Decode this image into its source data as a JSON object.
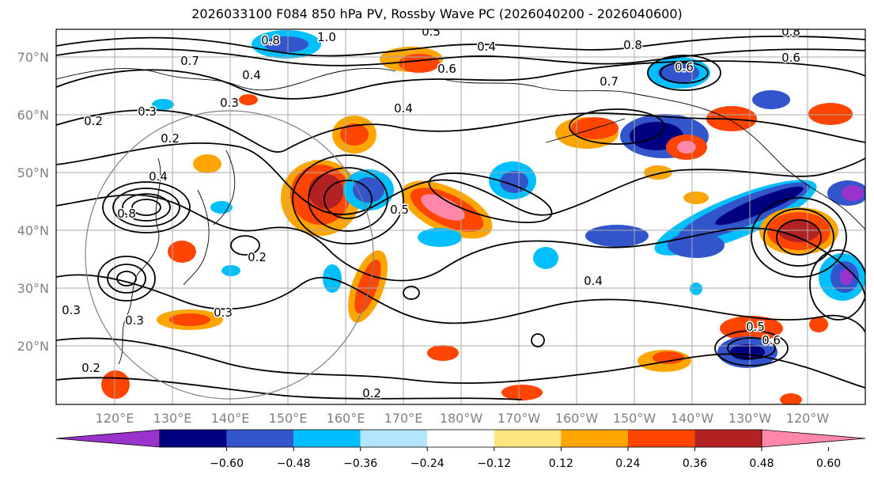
{
  "title": "2026033100 F084 850 hPa PV, Rossby Wave PC (2026040200 - 2026040600)",
  "map": {
    "lat_labels": [
      "70°N",
      "60°N",
      "50°N",
      "40°N",
      "30°N",
      "20°N"
    ],
    "lon_labels": [
      "120°E",
      "130°E",
      "140°E",
      "150°E",
      "160°E",
      "170°E",
      "180°W",
      "170°W",
      "160°W",
      "150°W",
      "140°W",
      "130°W",
      "120°W"
    ],
    "contour_labels": [
      "1.0",
      "0.8",
      "0.7",
      "0.4",
      "0.3",
      "0.2",
      "0.5",
      "0.6",
      "0.8",
      "0.7",
      "0.6",
      "0.6",
      "0.4",
      "0.4",
      "0.5",
      "0.2",
      "0.3",
      "0.3",
      "0.2",
      "0.4",
      "0.2",
      "0.4",
      "0.5",
      "0.6",
      "0.3",
      "0.8",
      "0.8",
      "0.3",
      "0.2"
    ]
  },
  "colorbar": {
    "ticks": [
      "−0.60",
      "−0.48",
      "−0.36",
      "−0.24",
      "−0.12",
      "0.12",
      "0.24",
      "0.36",
      "0.48",
      "0.60"
    ],
    "colors": [
      "#9933cc",
      "#000080",
      "#3355cc",
      "#00bfff",
      "#b3e5fc",
      "#ffffff",
      "#ffe680",
      "#ffa500",
      "#ff4500",
      "#b22222",
      "#ff88aa"
    ]
  },
  "colors": {
    "purple": "#9933cc",
    "navy": "#000080",
    "blue": "#3355cc",
    "cyan": "#00bfff",
    "lightblue": "#b3e5fc",
    "yellow": "#ffe680",
    "orange": "#ffa500",
    "redorange": "#ff4500",
    "darkred": "#b22222",
    "pink": "#ff88aa",
    "grid": "#aaaaaa",
    "axis_text": "#808080"
  }
}
